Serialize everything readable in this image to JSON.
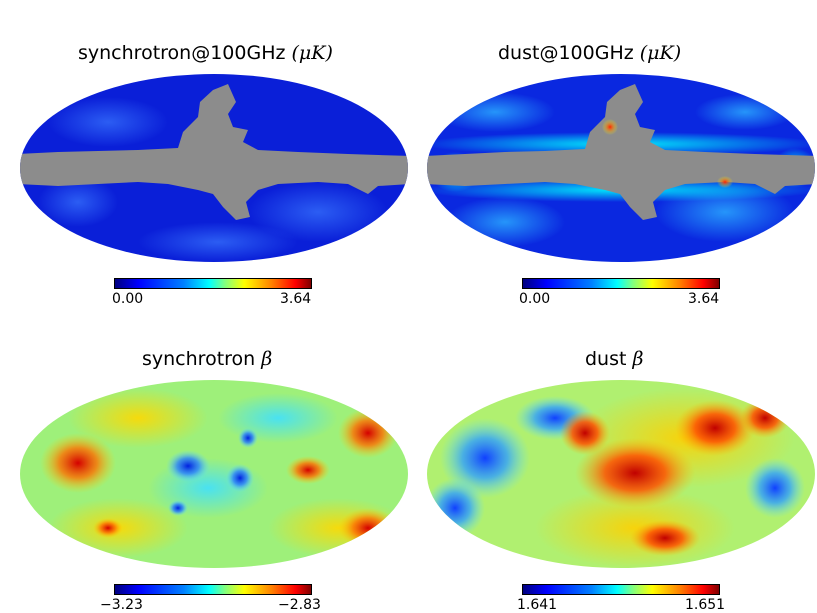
{
  "panels": [
    {
      "title": "synchrotron@100GHz",
      "unit": "(μK)",
      "cbar_min": "0.00",
      "cbar_max": "3.64"
    },
    {
      "title": "dust@100GHz",
      "unit": "(μK)",
      "cbar_min": "0.00",
      "cbar_max": "3.64"
    },
    {
      "title": "synchrotron",
      "unit": "β",
      "cbar_min": "−3.23",
      "cbar_max": "−2.83"
    },
    {
      "title": "dust",
      "unit": "β",
      "cbar_min": "1.641",
      "cbar_max": "1.651"
    }
  ],
  "colors": {
    "mask": "#8c8c8c",
    "colormap": [
      "#00007f",
      "#0000ff",
      "#0080ff",
      "#00ffff",
      "#80ff80",
      "#ffff00",
      "#ff8000",
      "#ff0000",
      "#7f0000"
    ]
  }
}
